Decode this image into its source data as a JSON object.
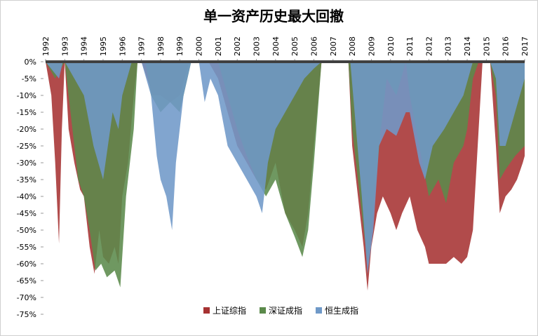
{
  "chart_data": {
    "type": "area",
    "title": "单一资产历史最大回撤",
    "xlim": [
      1992,
      2017
    ],
    "xticks": [
      1992,
      1993,
      1994,
      1995,
      1996,
      1997,
      1998,
      1999,
      2000,
      2001,
      2002,
      2003,
      2004,
      2005,
      2006,
      2007,
      2008,
      2009,
      2010,
      2011,
      2012,
      2013,
      2014,
      2015,
      2016,
      2017
    ],
    "ylim": [
      -75,
      0
    ],
    "yticks": [
      {
        "value": 0,
        "label": "0%"
      },
      {
        "value": -5,
        "label": "-5%"
      },
      {
        "value": -10,
        "label": "-10%"
      },
      {
        "value": -15,
        "label": "-15%"
      },
      {
        "value": -20,
        "label": "-20%"
      },
      {
        "value": -25,
        "label": "-25%"
      },
      {
        "value": -30,
        "label": "-30%"
      },
      {
        "value": -35,
        "label": "-35%"
      },
      {
        "value": -40,
        "label": "-40%"
      },
      {
        "value": -45,
        "label": "-45%"
      },
      {
        "value": -50,
        "label": "-50%"
      },
      {
        "value": -55,
        "label": "-55%"
      },
      {
        "value": -60,
        "label": "-60%"
      },
      {
        "value": -65,
        "label": "-65%"
      },
      {
        "value": -70,
        "label": "-70%"
      },
      {
        "value": -75,
        "label": "-75%"
      }
    ],
    "legend": "bottom",
    "series": [
      {
        "name": "上证综指",
        "color": "#a63232",
        "x": [
          1992.0,
          1992.3,
          1992.5,
          1992.7,
          1992.85,
          1993.0,
          1993.2,
          1993.5,
          1993.8,
          1994.0,
          1994.3,
          1994.55,
          1994.8,
          1995.0,
          1995.3,
          1995.6,
          1995.8,
          1996.0,
          1996.3,
          1996.6,
          1996.8,
          1997.0,
          1997.3,
          1997.6,
          1998.0,
          1998.5,
          1999.0,
          1999.5,
          2000.0,
          2000.5,
          2001.0,
          2001.5,
          2002.0,
          2002.5,
          2003.0,
          2003.5,
          2004.0,
          2004.5,
          2005.0,
          2005.4,
          2005.7,
          2006.0,
          2006.4,
          2007.0,
          2007.8,
          2008.0,
          2008.3,
          2008.6,
          2008.8,
          2009.0,
          2009.3,
          2009.6,
          2010.0,
          2010.3,
          2010.6,
          2011.0,
          2011.4,
          2011.8,
          2012.0,
          2012.5,
          2012.9,
          2013.3,
          2013.7,
          2014.0,
          2014.3,
          2014.6,
          2014.8,
          2015.2,
          2015.5,
          2015.7,
          2016.0,
          2016.3,
          2016.6,
          2016.9,
          2017.0
        ],
        "values": [
          0,
          -10,
          -30,
          -54,
          -20,
          0,
          -20,
          -30,
          -38,
          -40,
          -55,
          -63,
          -50,
          -58,
          -60,
          -55,
          -60,
          -40,
          -30,
          -10,
          0,
          0,
          -5,
          -10,
          -10,
          -12,
          -10,
          0,
          0,
          0,
          -5,
          -15,
          -25,
          -30,
          -35,
          -38,
          -30,
          -45,
          -50,
          -55,
          -45,
          -25,
          0,
          0,
          0,
          -25,
          -40,
          -55,
          -68,
          -55,
          -45,
          -40,
          -45,
          -50,
          -45,
          -40,
          -50,
          -55,
          -60,
          -60,
          -60,
          -58,
          -60,
          -58,
          -50,
          -20,
          0,
          0,
          -25,
          -45,
          -40,
          -38,
          -35,
          -30,
          -28
        ]
      },
      {
        "name": "深证成指",
        "color": "#5b8a4b",
        "x": [
          1992.0,
          1992.5,
          1993.0,
          1993.3,
          1993.7,
          1994.0,
          1994.3,
          1994.6,
          1994.9,
          1995.2,
          1995.6,
          1995.9,
          1996.2,
          1996.6,
          1996.8,
          1997.2,
          1997.5,
          1998.0,
          1998.5,
          1999.0,
          1999.4,
          1999.6,
          2000.0,
          2001.0,
          2001.5,
          2002.0,
          2002.5,
          2003.0,
          2003.5,
          2004.0,
          2004.5,
          2005.0,
          2005.4,
          2005.7,
          2006.0,
          2006.4,
          2007.8,
          2008.0,
          2008.4,
          2008.8,
          2009.0,
          2009.5,
          2009.8,
          2010.3,
          2010.8,
          2011.0,
          2011.5,
          2012.0,
          2012.5,
          2012.9,
          2013.3,
          2013.8,
          2014.0,
          2014.3,
          2014.6,
          2015.2,
          2015.5,
          2015.7,
          2016.0,
          2016.5,
          2017.0
        ],
        "values": [
          0,
          -5,
          0,
          -15,
          -35,
          -40,
          -50,
          -62,
          -60,
          -64,
          -62,
          -67,
          -40,
          -20,
          0,
          0,
          -10,
          -15,
          -12,
          -15,
          -5,
          0,
          0,
          0,
          -10,
          -20,
          -28,
          -35,
          -40,
          -35,
          -45,
          -52,
          -58,
          -50,
          -30,
          0,
          0,
          -20,
          -40,
          -60,
          -50,
          -20,
          -5,
          -10,
          0,
          -10,
          -25,
          -40,
          -35,
          -42,
          -30,
          -25,
          -20,
          -5,
          0,
          0,
          -10,
          -35,
          -32,
          -28,
          -25
        ]
      },
      {
        "name": "恒生成指",
        "color": "#6f99c8",
        "x": [
          1992.0,
          1992.7,
          1992.9,
          1993.0,
          1993.5,
          1994.0,
          1994.5,
          1995.0,
          1995.5,
          1995.8,
          1996.0,
          1996.5,
          1997.0,
          1997.5,
          1997.8,
          1998.0,
          1998.3,
          1998.6,
          1998.8,
          1999.2,
          1999.6,
          2000.0,
          2000.3,
          2000.6,
          2001.0,
          2001.5,
          2002.0,
          2002.5,
          2003.0,
          2003.3,
          2003.6,
          2004.0,
          2004.5,
          2005.0,
          2005.5,
          2006.0,
          2006.4,
          2007.9,
          2008.2,
          2008.5,
          2008.8,
          2009.1,
          2009.4,
          2009.8,
          2010.3,
          2010.8,
          2011.0,
          2011.5,
          2011.8,
          2012.2,
          2012.8,
          2013.3,
          2013.8,
          2014.3,
          2015.2,
          2015.5,
          2015.7,
          2016.0,
          2016.5,
          2017.0
        ],
        "values": [
          0,
          -5,
          0,
          0,
          -5,
          -10,
          -25,
          -35,
          -15,
          -20,
          -10,
          0,
          0,
          -10,
          -28,
          -35,
          -40,
          -50,
          -30,
          -10,
          0,
          0,
          -12,
          -5,
          -10,
          -25,
          -30,
          -35,
          -40,
          -45,
          -30,
          -20,
          -15,
          -10,
          -5,
          -2,
          0,
          0,
          -20,
          -40,
          -63,
          -50,
          -25,
          -20,
          -22,
          -15,
          -15,
          -30,
          -35,
          -25,
          -20,
          -15,
          -10,
          0,
          0,
          -5,
          -25,
          -25,
          -15,
          -5
        ]
      }
    ]
  }
}
